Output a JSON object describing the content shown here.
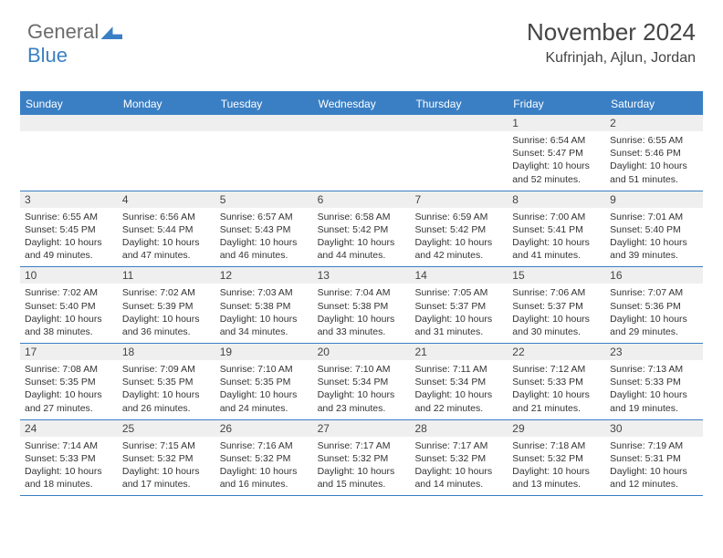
{
  "logo": {
    "part1": "General",
    "part2": "Blue"
  },
  "title": "November 2024",
  "location": "Kufrinjah, Ajlun, Jordan",
  "colors": {
    "accent": "#3a7fc4",
    "header_bg": "#3a7fc4",
    "daynum_bg": "#efefef",
    "border": "#3a7fc4"
  },
  "dow": [
    "Sunday",
    "Monday",
    "Tuesday",
    "Wednesday",
    "Thursday",
    "Friday",
    "Saturday"
  ],
  "weeks": [
    [
      {
        "n": "",
        "sr": "",
        "ss": "",
        "dl": ""
      },
      {
        "n": "",
        "sr": "",
        "ss": "",
        "dl": ""
      },
      {
        "n": "",
        "sr": "",
        "ss": "",
        "dl": ""
      },
      {
        "n": "",
        "sr": "",
        "ss": "",
        "dl": ""
      },
      {
        "n": "",
        "sr": "",
        "ss": "",
        "dl": ""
      },
      {
        "n": "1",
        "sr": "Sunrise: 6:54 AM",
        "ss": "Sunset: 5:47 PM",
        "dl": "Daylight: 10 hours and 52 minutes."
      },
      {
        "n": "2",
        "sr": "Sunrise: 6:55 AM",
        "ss": "Sunset: 5:46 PM",
        "dl": "Daylight: 10 hours and 51 minutes."
      }
    ],
    [
      {
        "n": "3",
        "sr": "Sunrise: 6:55 AM",
        "ss": "Sunset: 5:45 PM",
        "dl": "Daylight: 10 hours and 49 minutes."
      },
      {
        "n": "4",
        "sr": "Sunrise: 6:56 AM",
        "ss": "Sunset: 5:44 PM",
        "dl": "Daylight: 10 hours and 47 minutes."
      },
      {
        "n": "5",
        "sr": "Sunrise: 6:57 AM",
        "ss": "Sunset: 5:43 PM",
        "dl": "Daylight: 10 hours and 46 minutes."
      },
      {
        "n": "6",
        "sr": "Sunrise: 6:58 AM",
        "ss": "Sunset: 5:42 PM",
        "dl": "Daylight: 10 hours and 44 minutes."
      },
      {
        "n": "7",
        "sr": "Sunrise: 6:59 AM",
        "ss": "Sunset: 5:42 PM",
        "dl": "Daylight: 10 hours and 42 minutes."
      },
      {
        "n": "8",
        "sr": "Sunrise: 7:00 AM",
        "ss": "Sunset: 5:41 PM",
        "dl": "Daylight: 10 hours and 41 minutes."
      },
      {
        "n": "9",
        "sr": "Sunrise: 7:01 AM",
        "ss": "Sunset: 5:40 PM",
        "dl": "Daylight: 10 hours and 39 minutes."
      }
    ],
    [
      {
        "n": "10",
        "sr": "Sunrise: 7:02 AM",
        "ss": "Sunset: 5:40 PM",
        "dl": "Daylight: 10 hours and 38 minutes."
      },
      {
        "n": "11",
        "sr": "Sunrise: 7:02 AM",
        "ss": "Sunset: 5:39 PM",
        "dl": "Daylight: 10 hours and 36 minutes."
      },
      {
        "n": "12",
        "sr": "Sunrise: 7:03 AM",
        "ss": "Sunset: 5:38 PM",
        "dl": "Daylight: 10 hours and 34 minutes."
      },
      {
        "n": "13",
        "sr": "Sunrise: 7:04 AM",
        "ss": "Sunset: 5:38 PM",
        "dl": "Daylight: 10 hours and 33 minutes."
      },
      {
        "n": "14",
        "sr": "Sunrise: 7:05 AM",
        "ss": "Sunset: 5:37 PM",
        "dl": "Daylight: 10 hours and 31 minutes."
      },
      {
        "n": "15",
        "sr": "Sunrise: 7:06 AM",
        "ss": "Sunset: 5:37 PM",
        "dl": "Daylight: 10 hours and 30 minutes."
      },
      {
        "n": "16",
        "sr": "Sunrise: 7:07 AM",
        "ss": "Sunset: 5:36 PM",
        "dl": "Daylight: 10 hours and 29 minutes."
      }
    ],
    [
      {
        "n": "17",
        "sr": "Sunrise: 7:08 AM",
        "ss": "Sunset: 5:35 PM",
        "dl": "Daylight: 10 hours and 27 minutes."
      },
      {
        "n": "18",
        "sr": "Sunrise: 7:09 AM",
        "ss": "Sunset: 5:35 PM",
        "dl": "Daylight: 10 hours and 26 minutes."
      },
      {
        "n": "19",
        "sr": "Sunrise: 7:10 AM",
        "ss": "Sunset: 5:35 PM",
        "dl": "Daylight: 10 hours and 24 minutes."
      },
      {
        "n": "20",
        "sr": "Sunrise: 7:10 AM",
        "ss": "Sunset: 5:34 PM",
        "dl": "Daylight: 10 hours and 23 minutes."
      },
      {
        "n": "21",
        "sr": "Sunrise: 7:11 AM",
        "ss": "Sunset: 5:34 PM",
        "dl": "Daylight: 10 hours and 22 minutes."
      },
      {
        "n": "22",
        "sr": "Sunrise: 7:12 AM",
        "ss": "Sunset: 5:33 PM",
        "dl": "Daylight: 10 hours and 21 minutes."
      },
      {
        "n": "23",
        "sr": "Sunrise: 7:13 AM",
        "ss": "Sunset: 5:33 PM",
        "dl": "Daylight: 10 hours and 19 minutes."
      }
    ],
    [
      {
        "n": "24",
        "sr": "Sunrise: 7:14 AM",
        "ss": "Sunset: 5:33 PM",
        "dl": "Daylight: 10 hours and 18 minutes."
      },
      {
        "n": "25",
        "sr": "Sunrise: 7:15 AM",
        "ss": "Sunset: 5:32 PM",
        "dl": "Daylight: 10 hours and 17 minutes."
      },
      {
        "n": "26",
        "sr": "Sunrise: 7:16 AM",
        "ss": "Sunset: 5:32 PM",
        "dl": "Daylight: 10 hours and 16 minutes."
      },
      {
        "n": "27",
        "sr": "Sunrise: 7:17 AM",
        "ss": "Sunset: 5:32 PM",
        "dl": "Daylight: 10 hours and 15 minutes."
      },
      {
        "n": "28",
        "sr": "Sunrise: 7:17 AM",
        "ss": "Sunset: 5:32 PM",
        "dl": "Daylight: 10 hours and 14 minutes."
      },
      {
        "n": "29",
        "sr": "Sunrise: 7:18 AM",
        "ss": "Sunset: 5:32 PM",
        "dl": "Daylight: 10 hours and 13 minutes."
      },
      {
        "n": "30",
        "sr": "Sunrise: 7:19 AM",
        "ss": "Sunset: 5:31 PM",
        "dl": "Daylight: 10 hours and 12 minutes."
      }
    ]
  ]
}
